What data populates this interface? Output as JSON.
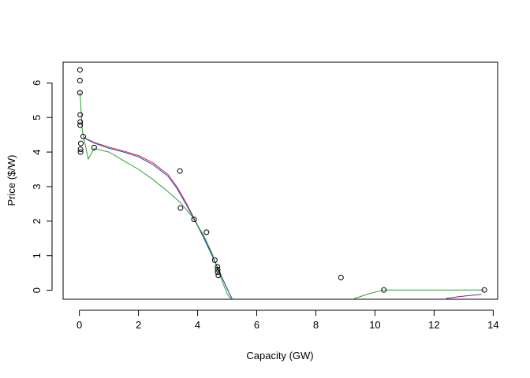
{
  "chart_data": {
    "type": "scatter",
    "title": "",
    "xlabel": "Capacity (GW)",
    "ylabel": "Price ($/W)",
    "xlim": [
      -0.55,
      14.15
    ],
    "ylim": [
      -0.26,
      6.6
    ],
    "xticks": [
      0,
      2,
      4,
      6,
      8,
      10,
      12,
      14
    ],
    "yticks": [
      0,
      1,
      2,
      3,
      4,
      5,
      6
    ],
    "grid": false,
    "legend": "none",
    "points": [
      [
        0.02,
        6.38
      ],
      [
        0.02,
        6.07
      ],
      [
        0.02,
        5.72
      ],
      [
        0.03,
        5.08
      ],
      [
        0.03,
        4.87
      ],
      [
        0.03,
        4.78
      ],
      [
        0.04,
        4.08
      ],
      [
        0.04,
        4.0
      ],
      [
        0.05,
        4.25
      ],
      [
        0.13,
        4.45
      ],
      [
        0.5,
        4.13
      ],
      [
        3.4,
        3.45
      ],
      [
        3.42,
        2.38
      ],
      [
        3.88,
        2.05
      ],
      [
        4.3,
        1.68
      ],
      [
        4.58,
        0.87
      ],
      [
        4.67,
        0.68
      ],
      [
        4.68,
        0.6
      ],
      [
        4.68,
        0.52
      ],
      [
        4.7,
        0.43
      ],
      [
        8.85,
        0.37
      ],
      [
        10.3,
        0.01
      ],
      [
        13.7,
        0.01
      ]
    ],
    "series": [
      {
        "color": "#d62728",
        "x": [
          0.15,
          0.5,
          1.0,
          1.5,
          2.0,
          2.5,
          3.0,
          3.3,
          3.6,
          3.9,
          4.2,
          4.5,
          4.8,
          5.0,
          5.2,
          5.3
        ],
        "y": [
          4.42,
          4.28,
          4.14,
          4.03,
          3.9,
          3.68,
          3.35,
          3.0,
          2.55,
          2.05,
          1.55,
          1.0,
          0.42,
          0.05,
          -0.3,
          -0.5
        ]
      },
      {
        "color": "#1f4fd1",
        "x": [
          0.15,
          0.5,
          1.0,
          1.5,
          2.0,
          2.5,
          3.0,
          3.3,
          3.6,
          3.9,
          4.2,
          4.5,
          4.8,
          5.0,
          5.2,
          5.3
        ],
        "y": [
          4.41,
          4.26,
          4.11,
          4.0,
          3.86,
          3.63,
          3.3,
          2.95,
          2.5,
          2.03,
          1.53,
          0.98,
          0.41,
          0.04,
          -0.31,
          -0.51
        ]
      },
      {
        "color": "#2ca02c",
        "x": [
          0.02,
          0.1,
          0.3,
          0.5,
          1.0,
          1.5,
          2.0,
          2.5,
          3.0,
          3.4,
          3.8,
          4.2,
          4.5,
          4.7,
          5.0,
          5.3
        ],
        "y": [
          5.75,
          4.6,
          3.8,
          4.1,
          4.0,
          3.75,
          3.5,
          3.2,
          2.85,
          2.55,
          2.15,
          1.6,
          1.05,
          0.55,
          -0.1,
          -0.5
        ]
      },
      {
        "color": "#2ca02c",
        "x": [
          9.3,
          9.8,
          10.3,
          11.0,
          12.0,
          13.0,
          13.7
        ],
        "y": [
          -0.24,
          -0.1,
          0.01,
          0.01,
          0.01,
          0.01,
          0.01
        ]
      },
      {
        "color": "#8b1a8b",
        "x": [
          12.4,
          12.8,
          13.2,
          13.6
        ],
        "y": [
          -0.24,
          -0.19,
          -0.15,
          -0.12
        ]
      }
    ]
  }
}
